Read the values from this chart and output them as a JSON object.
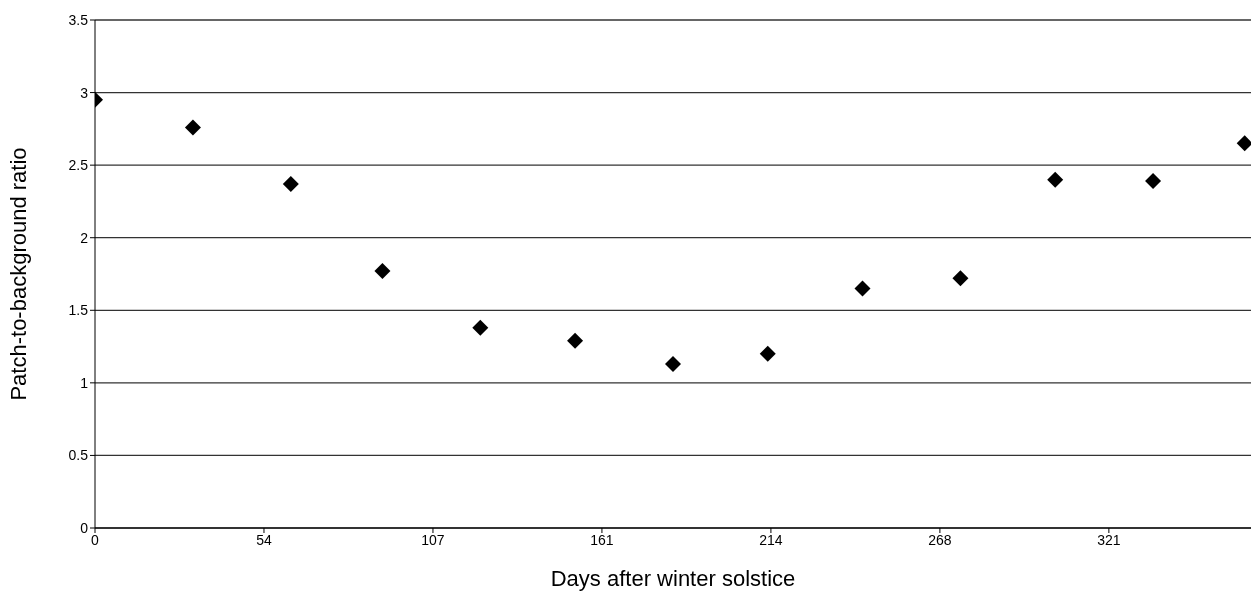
{
  "chart_data": {
    "type": "scatter",
    "xlabel": "Days after winter solstice",
    "ylabel": "Patch-to-background ratio",
    "x": [
      0,
      31,
      62,
      91,
      122,
      152,
      183,
      213,
      243,
      274,
      304,
      335,
      364
    ],
    "values": [
      2.95,
      2.76,
      2.37,
      1.77,
      1.38,
      1.29,
      1.13,
      1.2,
      1.65,
      1.72,
      2.4,
      2.39,
      2.65
    ],
    "color": "#000000",
    "marker": "diamond",
    "grid": "y",
    "xlim": [
      0,
      366
    ],
    "xticks": [
      0,
      {
        "value": 53.5,
        "label": "54"
      },
      107,
      {
        "value": 160.5,
        "label": "161"
      },
      214,
      {
        "value": 267.5,
        "label": "268"
      },
      {
        "value": 321,
        "label": "321"
      }
    ],
    "ylim": [
      0,
      3.5
    ],
    "yticks": [
      0,
      0.5,
      1,
      1.5,
      2,
      2.5,
      3,
      3.5
    ]
  }
}
